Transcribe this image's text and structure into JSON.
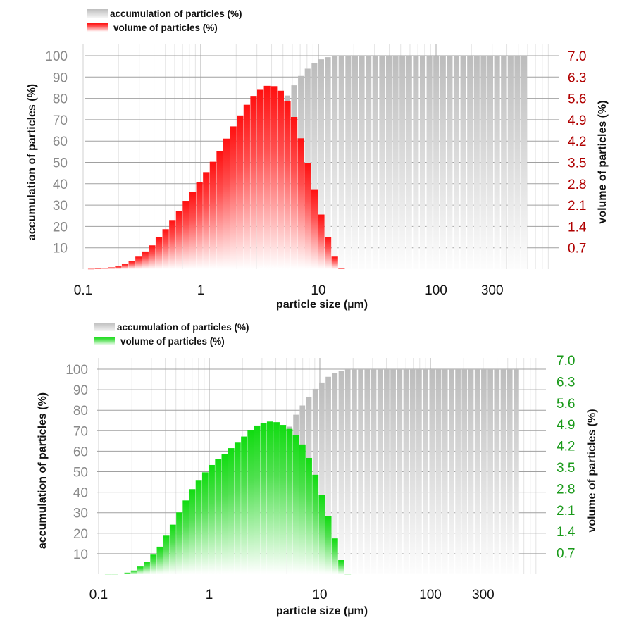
{
  "chart_data": [
    {
      "type": "bar",
      "xlabel": "particle size (µm)",
      "xscale": "log",
      "xticks": [
        "0.1",
        "1",
        "10",
        "100",
        "300"
      ],
      "xtick_values": [
        0.1,
        1,
        10,
        100,
        300
      ],
      "ylabel_left": "accumulation of particles (%)",
      "ylim_left": [
        0,
        100
      ],
      "yticks_left": [
        "10",
        "20",
        "30",
        "40",
        "50",
        "60",
        "70",
        "80",
        "90",
        "100"
      ],
      "ylabel_right": "volume of particles (%)",
      "ylim_right": [
        0,
        7
      ],
      "yticks_right": [
        "0.7",
        "1.4",
        "2.1",
        "2.8",
        "3.5",
        "4.2",
        "4.9",
        "5.6",
        "6.3",
        "7.0"
      ],
      "grid": true,
      "legend_position": "top-left",
      "legend": [
        {
          "label": "accumulation of particles (%)",
          "color": "#bdbdbd"
        },
        {
          "label": "volume of particles (%)",
          "color": "#ff0000"
        }
      ],
      "right_tick_color": "#b00000",
      "bin_start": 0.11,
      "bin_log_width": 0.0575,
      "series": [
        {
          "name": "accumulation of particles (%)",
          "axis": "left",
          "color": "#bdbdbd",
          "values": [
            0,
            0,
            0,
            0.1,
            0.2,
            0.3,
            0.5,
            0.8,
            1.2,
            1.8,
            2.6,
            3.6,
            4.9,
            6.5,
            8.4,
            10.7,
            13.4,
            16.5,
            20,
            24,
            28.5,
            33.5,
            39,
            45,
            51,
            57.5,
            64,
            71,
            78,
            81.3,
            86.1,
            90.5,
            93.9,
            96.6,
            98.3,
            99.3,
            100,
            100,
            100,
            100,
            100,
            100,
            100,
            100,
            100,
            100,
            100,
            100,
            100,
            100,
            100,
            100,
            100,
            100,
            100,
            100,
            100,
            100,
            100,
            100,
            100,
            100,
            100,
            100,
            100
          ]
        },
        {
          "name": "volume of particles (%)",
          "axis": "right",
          "color": "#ff0000",
          "values": [
            0.01,
            0.02,
            0.04,
            0.06,
            0.09,
            0.17,
            0.27,
            0.41,
            0.58,
            0.78,
            1.04,
            1.31,
            1.61,
            1.91,
            2.24,
            2.53,
            2.85,
            3.18,
            3.52,
            3.87,
            4.28,
            4.68,
            5.04,
            5.39,
            5.68,
            5.88,
            6.01,
            6.0,
            5.85,
            5.5,
            4.99,
            4.29,
            3.48,
            2.62,
            1.79,
            1.06,
            0.41,
            0.02
          ]
        }
      ]
    },
    {
      "type": "bar",
      "xlabel": "particle size (µm)",
      "xscale": "log",
      "xticks": [
        "0.1",
        "1",
        "10",
        "100",
        "300"
      ],
      "xtick_values": [
        0.1,
        1,
        10,
        100,
        300
      ],
      "ylabel_left": "accumulation of particles (%)",
      "ylim_left": [
        0,
        100
      ],
      "yticks_left": [
        "10",
        "20",
        "30",
        "40",
        "50",
        "60",
        "70",
        "80",
        "90",
        "100"
      ],
      "ylabel_right": "volume of particles (%)",
      "ylim_right": [
        0,
        7
      ],
      "yticks_right": [
        "0.7",
        "1.4",
        "2.1",
        "2.8",
        "3.5",
        "4.2",
        "4.9",
        "5.6",
        "6.3",
        "7.0"
      ],
      "grid": true,
      "legend_position": "top-left",
      "legend": [
        {
          "label": "accumulation of particles (%)",
          "color": "#bdbdbd"
        },
        {
          "label": "volume of particles (%)",
          "color": "#10d810"
        }
      ],
      "right_tick_color": "#1a9a1a",
      "bin_start": 0.114,
      "bin_log_width": 0.0586,
      "series": [
        {
          "name": "accumulation of particles (%)",
          "axis": "left",
          "color": "#bdbdbd",
          "values": [
            0,
            0,
            0,
            0.1,
            0.2,
            0.4,
            0.7,
            1.1,
            1.6,
            2.3,
            3.2,
            4.3,
            5.6,
            7.2,
            9,
            11,
            13.3,
            15.8,
            18.6,
            21.7,
            25,
            28.6,
            32.5,
            38,
            45,
            52,
            59,
            66,
            72,
            77.8,
            82.3,
            86.6,
            90.4,
            93.5,
            96.3,
            98.2,
            99.3,
            100,
            100,
            100,
            100,
            100,
            100,
            100,
            100,
            100,
            100,
            100,
            100,
            100,
            100,
            100,
            100,
            100,
            100,
            100,
            100,
            100,
            100,
            100,
            100,
            100,
            100,
            100
          ]
        },
        {
          "name": "volume of particles (%)",
          "axis": "right",
          "color": "#10d810",
          "values": [
            0.01,
            0.01,
            0.02,
            0.05,
            0.12,
            0.25,
            0.41,
            0.64,
            0.9,
            1.26,
            1.62,
            2.02,
            2.41,
            2.78,
            3.08,
            3.33,
            3.57,
            3.77,
            3.93,
            4.12,
            4.3,
            4.5,
            4.7,
            4.86,
            4.95,
            4.99,
            4.97,
            4.88,
            4.75,
            4.54,
            4.24,
            3.8,
            3.25,
            2.6,
            1.9,
            1.17,
            0.46,
            0.01
          ]
        }
      ]
    }
  ]
}
